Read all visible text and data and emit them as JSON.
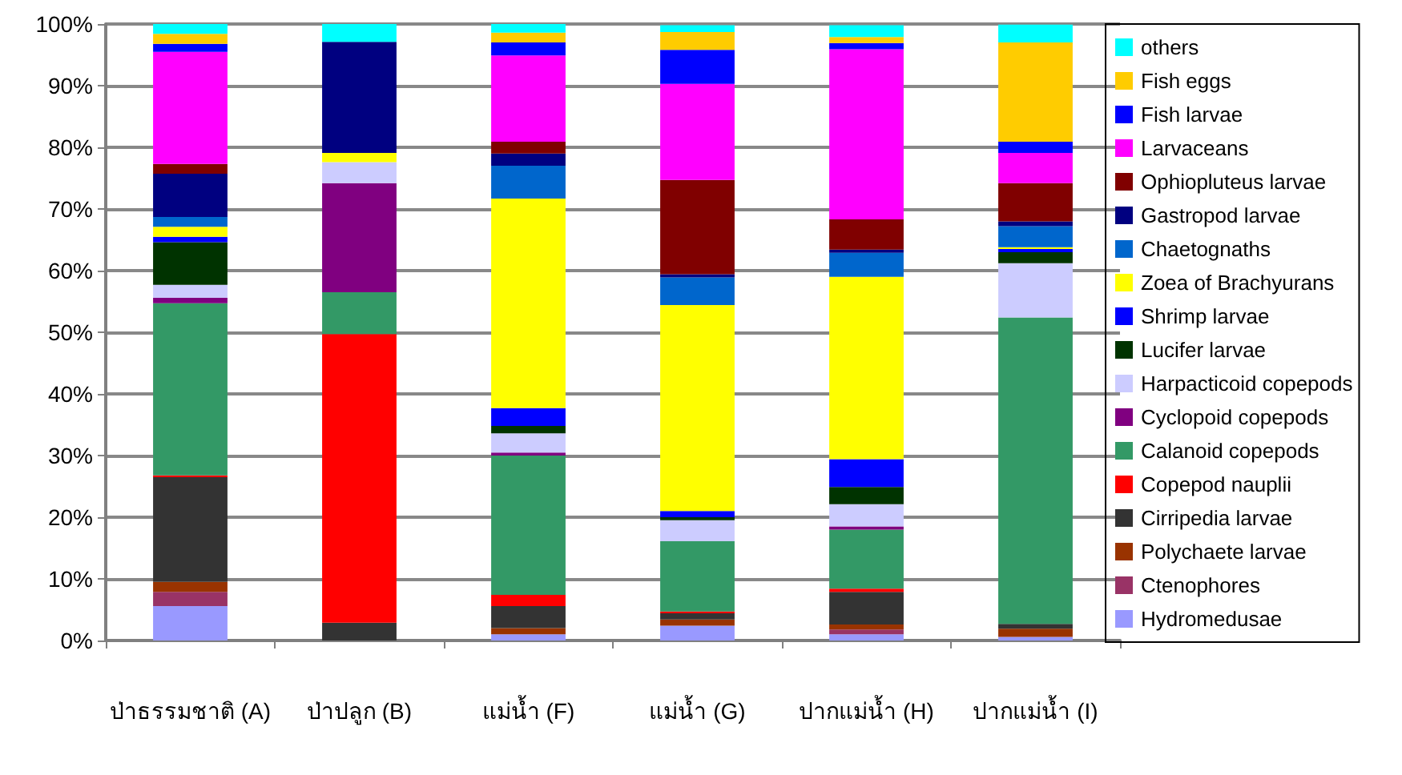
{
  "chart_data": {
    "type": "bar",
    "stacked": true,
    "categories": [
      "ป่าธรรมชาติ (A)",
      "ป่าปลูก (B)",
      "แม่น้ำ (F)",
      "แม่น้ำ (G)",
      "ปากแม่น้ำ (H)",
      "ปากแม่น้ำ (I)"
    ],
    "ylim": [
      0,
      100
    ],
    "yticks": [
      {
        "value": 0,
        "label": "0%"
      },
      {
        "value": 10,
        "label": "10%"
      },
      {
        "value": 20,
        "label": "20%"
      },
      {
        "value": 30,
        "label": "30%"
      },
      {
        "value": 40,
        "label": "40%"
      },
      {
        "value": 50,
        "label": "50%"
      },
      {
        "value": 60,
        "label": "60%"
      },
      {
        "value": 70,
        "label": "70%"
      },
      {
        "value": 80,
        "label": "80%"
      },
      {
        "value": 90,
        "label": "90%"
      },
      {
        "value": 100,
        "label": "100%"
      }
    ],
    "grid": "y",
    "legend": "right",
    "series": [
      {
        "name": "Hydromedusae",
        "color": "#9999ff",
        "values": [
          5.6,
          0,
          1.0,
          2.4,
          1.0,
          0.6
        ]
      },
      {
        "name": "Ctenophores",
        "color": "#993366",
        "values": [
          2.3,
          0,
          0,
          0,
          0.8,
          0
        ]
      },
      {
        "name": "Polychaete larvae",
        "color": "#993300",
        "values": [
          1.6,
          0,
          1.0,
          1.0,
          0.8,
          1.3
        ]
      },
      {
        "name": "Cirripedia larvae",
        "color": "#333333",
        "values": [
          17.0,
          2.9,
          3.6,
          1.0,
          5.3,
          0.8
        ]
      },
      {
        "name": "Copepod nauplii",
        "color": "#ff0000",
        "values": [
          0.3,
          46.8,
          1.8,
          0.3,
          0.5,
          0
        ]
      },
      {
        "name": "Calanoid copepods",
        "color": "#339966",
        "values": [
          27.9,
          6.8,
          22.6,
          11.4,
          9.6,
          49.7
        ]
      },
      {
        "name": "Cyclopoid copepods",
        "color": "#800080",
        "values": [
          0.9,
          17.7,
          0.5,
          0,
          0.5,
          0
        ]
      },
      {
        "name": "Harpacticoid copepods",
        "color": "#ccccff",
        "values": [
          2.1,
          3.4,
          3.1,
          3.4,
          3.6,
          8.8
        ]
      },
      {
        "name": "Lucifer larvae",
        "color": "#003300",
        "values": [
          6.9,
          0,
          1.2,
          0.5,
          2.8,
          1.8
        ]
      },
      {
        "name": "Shrimp larvae",
        "color": "#0000ff",
        "values": [
          0.9,
          0,
          2.9,
          1.0,
          4.5,
          0.5
        ]
      },
      {
        "name": "Zoea of Brachyurans",
        "color": "#ffff00",
        "values": [
          1.6,
          1.5,
          34.0,
          33.4,
          29.6,
          0.3
        ]
      },
      {
        "name": "Chaetognaths",
        "color": "#0066cc",
        "values": [
          1.6,
          0,
          5.3,
          4.5,
          3.9,
          3.4
        ]
      },
      {
        "name": "Gastropod larvae",
        "color": "#000080",
        "values": [
          7.0,
          18.0,
          2.0,
          0.5,
          0.5,
          0.8
        ]
      },
      {
        "name": "Ophiopluteus larvae",
        "color": "#800000",
        "values": [
          1.6,
          0,
          1.9,
          15.3,
          4.9,
          6.2
        ]
      },
      {
        "name": "Larvaceans",
        "color": "#ff00ff",
        "values": [
          18.2,
          0,
          14.0,
          15.6,
          27.6,
          4.9
        ]
      },
      {
        "name": "Fish larvae",
        "color": "#0000fe",
        "values": [
          1.3,
          0,
          2.1,
          5.5,
          1.0,
          1.8
        ]
      },
      {
        "name": "Fish eggs",
        "color": "#ffcc00",
        "values": [
          1.6,
          0,
          1.6,
          2.9,
          1.0,
          16.1
        ]
      },
      {
        "name": "others",
        "color": "#00ffff",
        "values": [
          1.9,
          2.9,
          1.4,
          1.1,
          1.9,
          2.9
        ]
      }
    ]
  }
}
